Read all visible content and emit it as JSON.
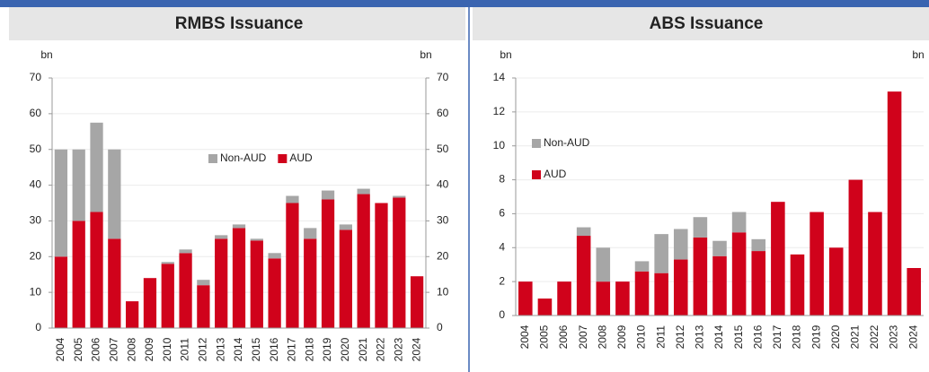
{
  "chart_data": [
    {
      "type": "stacked_bar",
      "title": "RMBS Issuance",
      "y_unit_label": "bn",
      "y2_unit_label": "bn",
      "categories": [
        "2004",
        "2005",
        "2006",
        "2007",
        "2008",
        "2009",
        "2010",
        "2011",
        "2012",
        "2013",
        "2014",
        "2015",
        "2016",
        "2017",
        "2018",
        "2019",
        "2020",
        "2021",
        "2022",
        "2023",
        "2024"
      ],
      "series": [
        {
          "name": "AUD",
          "color": "#d0021b",
          "values": [
            20,
            30,
            32.5,
            25,
            7.5,
            14,
            18,
            21,
            12,
            25,
            28,
            24.5,
            19.5,
            35,
            25,
            36,
            27.5,
            37.5,
            35,
            36.5,
            14.5
          ]
        },
        {
          "name": "Non-AUD",
          "color": "#a6a6a6",
          "values": [
            30,
            20,
            25,
            25,
            0,
            0,
            0.5,
            1,
            1.5,
            1,
            1,
            0.5,
            1.5,
            2,
            3,
            2.5,
            1.5,
            1.5,
            0,
            0.5,
            0
          ]
        }
      ],
      "ylim": [
        0,
        70
      ],
      "yticks": [
        0,
        10,
        20,
        30,
        40,
        50,
        60,
        70
      ],
      "y2lim": [
        0,
        70
      ],
      "y2ticks": [
        0,
        10,
        20,
        30,
        40,
        50,
        60,
        70
      ],
      "grid": true,
      "legend": "center"
    },
    {
      "type": "stacked_bar",
      "title": "ABS Issuance",
      "y_unit_label": "bn",
      "y2_unit_label": "bn",
      "categories": [
        "2004",
        "2005",
        "2006",
        "2007",
        "2008",
        "2009",
        "2010",
        "2011",
        "2012",
        "2013",
        "2014",
        "2015",
        "2016",
        "2017",
        "2018",
        "2019",
        "2020",
        "2021",
        "2022",
        "2023",
        "2024"
      ],
      "series": [
        {
          "name": "AUD",
          "color": "#d0021b",
          "values": [
            2,
            1,
            2,
            4.7,
            2,
            2,
            2.6,
            2.5,
            3.3,
            4.6,
            3.5,
            4.9,
            3.8,
            6.7,
            3.6,
            6.1,
            4,
            8,
            6.1,
            13.2,
            2.8
          ]
        },
        {
          "name": "Non-AUD",
          "color": "#a6a6a6",
          "values": [
            0,
            0,
            0,
            0.5,
            2,
            0,
            0.6,
            2.3,
            1.8,
            1.2,
            0.9,
            1.2,
            0.7,
            0,
            0,
            0,
            0,
            0,
            0,
            0,
            0
          ]
        }
      ],
      "ylim": [
        0,
        14
      ],
      "yticks": [
        0,
        2,
        4,
        6,
        8,
        10,
        12,
        14
      ],
      "grid": true,
      "legend": "upper left"
    }
  ]
}
